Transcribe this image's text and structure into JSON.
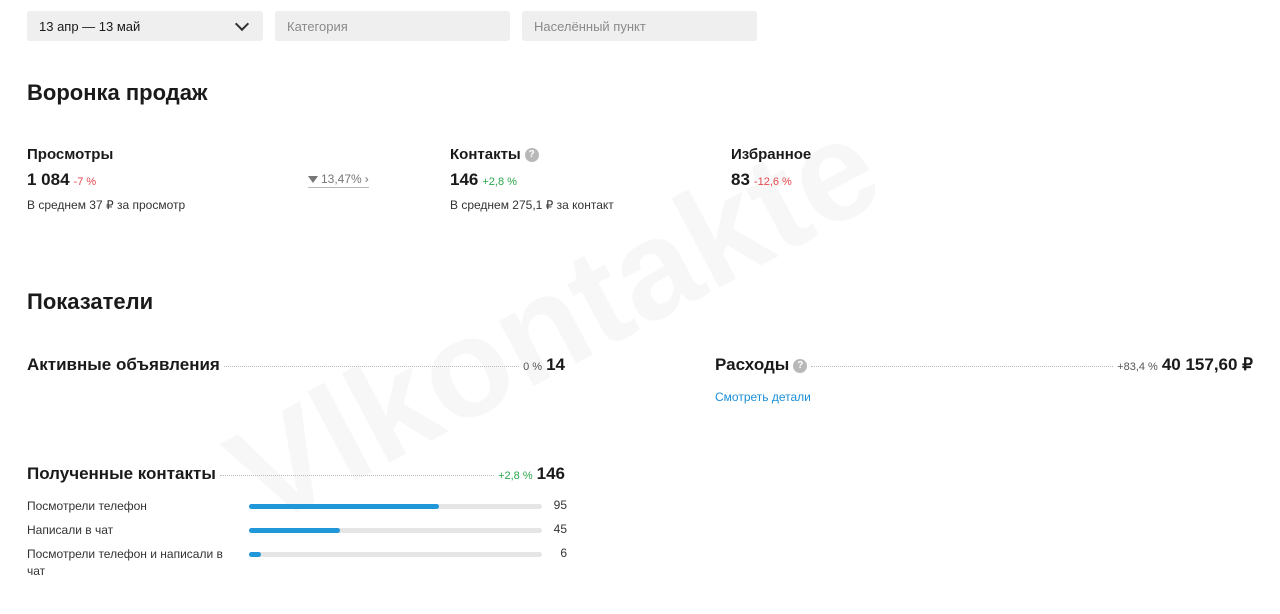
{
  "filters": {
    "date_range": "13 апр — 13 май",
    "category_placeholder": "Категория",
    "location_placeholder": "Населённый пункт"
  },
  "funnel": {
    "title": "Воронка продаж",
    "views": {
      "label": "Просмотры",
      "value": "1 084",
      "delta": "-7 %",
      "sub": "В среднем 37 ₽ за просмотр"
    },
    "conversion": "13,47%",
    "contacts": {
      "label": "Контакты",
      "value": "146",
      "delta": "+2,8 %",
      "sub": "В среднем 275,1 ₽ за контакт"
    },
    "favorites": {
      "label": "Избранное",
      "value": "83",
      "delta": "-12,6 %"
    }
  },
  "metrics": {
    "title": "Показатели",
    "active_ads": {
      "label": "Активные объявления",
      "pct": "0 %",
      "value": "14"
    },
    "expenses": {
      "label": "Расходы",
      "pct": "+83,4 %",
      "value": "40 157,60 ₽",
      "link": "Смотреть детали"
    },
    "received_contacts": {
      "label": "Полученные контакты",
      "pct": "+2,8 %",
      "value": "146",
      "rows": [
        {
          "label": "Посмотрели телефон",
          "value": "95",
          "fraction": 0.65
        },
        {
          "label": "Написали в чат",
          "value": "45",
          "fraction": 0.31
        },
        {
          "label": "Посмотрели телефон и написали в чат",
          "value": "6",
          "fraction": 0.04
        }
      ]
    }
  },
  "colors": {
    "accent": "#1f97d8",
    "negative": "#e5484d",
    "positive": "#2aa64c"
  }
}
